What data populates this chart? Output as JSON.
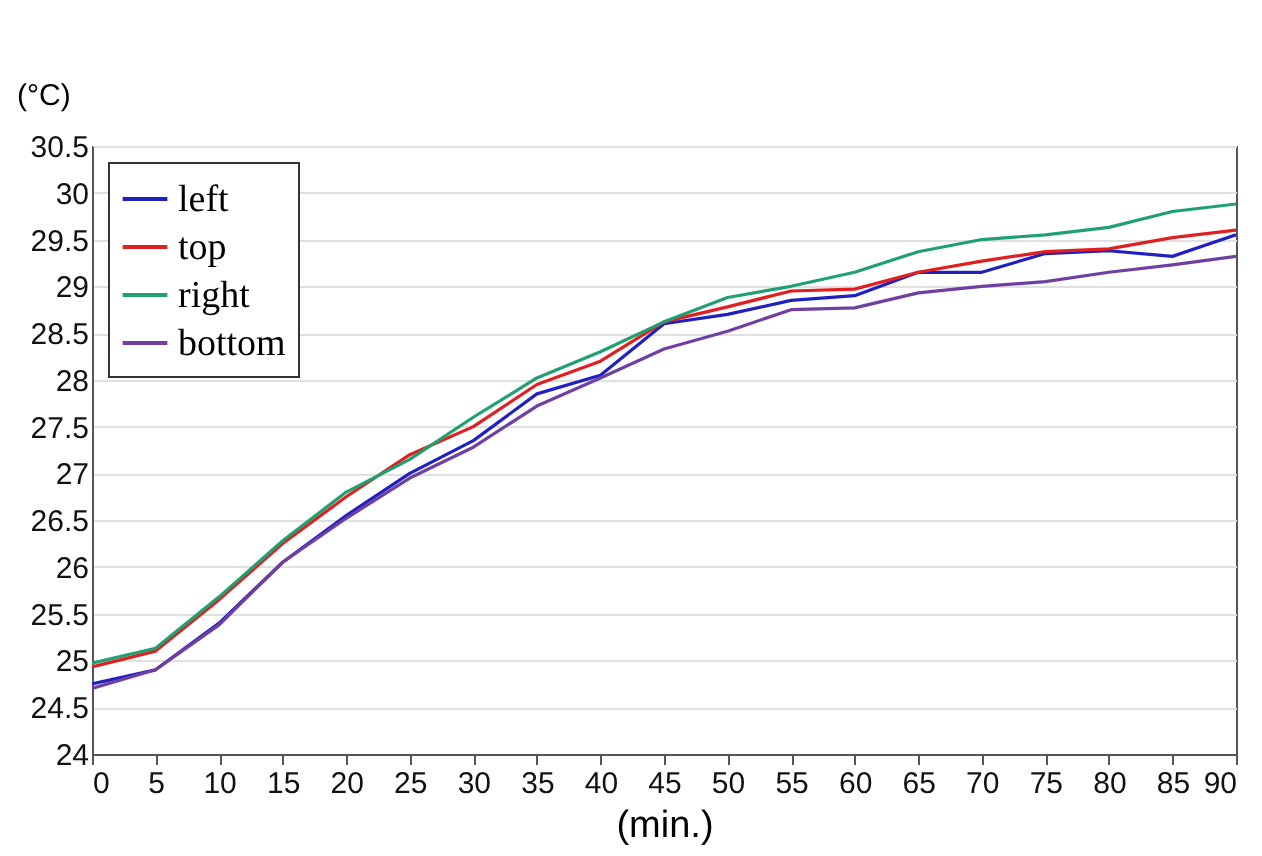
{
  "chart_data": {
    "type": "line",
    "ylabel": "(°C)",
    "xlabel": "(min.)",
    "x": [
      0,
      5,
      10,
      15,
      20,
      25,
      30,
      35,
      40,
      45,
      50,
      55,
      60,
      65,
      70,
      75,
      80,
      85,
      90
    ],
    "xlim": [
      0,
      90
    ],
    "xticks": [
      0,
      5,
      10,
      15,
      20,
      25,
      30,
      35,
      40,
      45,
      50,
      55,
      60,
      65,
      70,
      75,
      80,
      85,
      90
    ],
    "ylim": [
      24,
      30.5
    ],
    "yticks": [
      24,
      24.5,
      25,
      25.5,
      26,
      26.5,
      27,
      27.5,
      28,
      28.5,
      29,
      29.5,
      30,
      30.5
    ],
    "grid": "y",
    "legend": "top left",
    "marker": "none",
    "line_style": "solid",
    "series": [
      {
        "name": "left",
        "color": "#2020c0",
        "values": [
          24.75,
          24.9,
          25.4,
          26.05,
          26.55,
          27.0,
          27.35,
          27.85,
          28.05,
          28.6,
          28.7,
          28.85,
          28.9,
          29.15,
          29.15,
          29.35,
          29.38,
          29.32,
          29.55
        ]
      },
      {
        "name": "top",
        "color": "#e02020",
        "values": [
          24.93,
          25.1,
          25.65,
          26.25,
          26.75,
          27.2,
          27.5,
          27.95,
          28.2,
          28.62,
          28.78,
          28.95,
          28.97,
          29.15,
          29.27,
          29.37,
          29.4,
          29.52,
          29.6
        ]
      },
      {
        "name": "right",
        "color": "#20a070",
        "values": [
          24.97,
          25.13,
          25.68,
          26.28,
          26.8,
          27.15,
          27.6,
          28.02,
          28.3,
          28.62,
          28.88,
          29.0,
          29.15,
          29.37,
          29.5,
          29.55,
          29.63,
          29.8,
          29.88
        ]
      },
      {
        "name": "bottom",
        "color": "#7040a0",
        "values": [
          24.7,
          24.9,
          25.38,
          26.05,
          26.52,
          26.95,
          27.28,
          27.72,
          28.02,
          28.33,
          28.52,
          28.75,
          28.77,
          28.93,
          29.0,
          29.05,
          29.15,
          29.23,
          29.32
        ]
      }
    ]
  }
}
